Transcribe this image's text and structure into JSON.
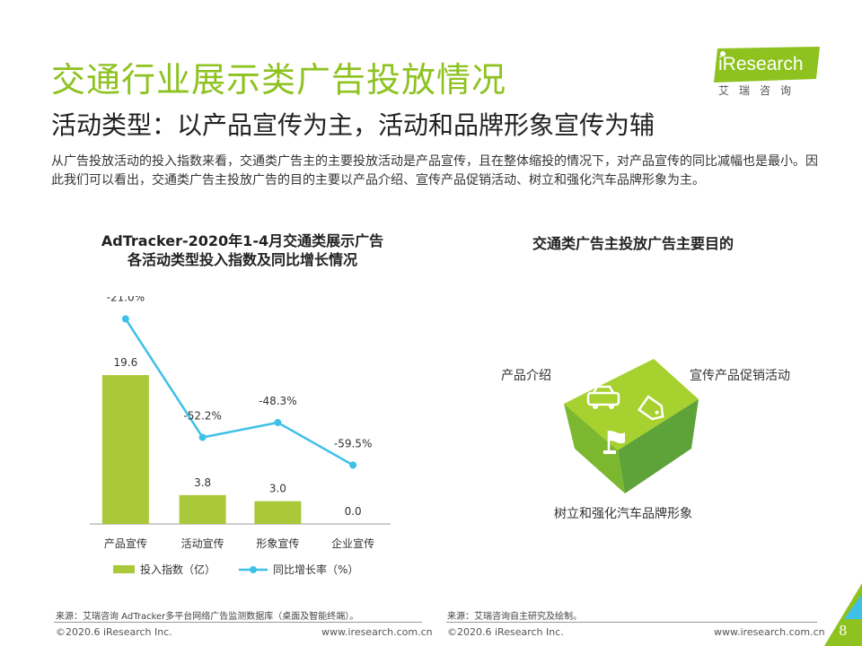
{
  "header": {
    "title": "交通行业展示类广告投放情况",
    "subtitle": "活动类型：以产品宣传为主，活动和品牌形象宣传为辅",
    "body": "从广告投放活动的投入指数来看，交通类广告主的主要投放活动是产品宣传，且在整体缩投的情况下，对产品宣传的同比减幅也是最小。因此我们可以看出，交通类广告主投放广告的目的主要以产品介绍、宣传产品促销活动、树立和强化汽车品牌形象为主。"
  },
  "logo": {
    "name": "iResearch",
    "sub": "艾瑞咨询"
  },
  "chart_data": {
    "type": "bar",
    "title": "AdTracker-2020年1-4月交通类展示广告各活动类型投入指数及同比增长情况",
    "title_line1": "AdTracker-2020年1-4月交通类展示广告",
    "title_line2": "各活动类型投入指数及同比增长情况",
    "categories": [
      "产品宣传",
      "活动宣传",
      "形象宣传",
      "企业宣传"
    ],
    "series": [
      {
        "name": "投入指数（亿）",
        "kind": "bar",
        "values": [
          19.6,
          3.8,
          3.0,
          0.0
        ],
        "labels": [
          "19.6",
          "3.8",
          "3.0",
          "0.0"
        ],
        "color": "#a9c93a"
      },
      {
        "name": "同比增长率（%）",
        "kind": "line",
        "values": [
          -21.0,
          -52.2,
          -48.3,
          -59.5
        ],
        "labels": [
          "-21.0%",
          "-52.2%",
          "-48.3%",
          "-59.5%"
        ],
        "color": "#3fc0e8"
      }
    ],
    "bar_ylim": [
      0,
      30
    ],
    "line_ylim": [
      -75,
      -15
    ],
    "legend": [
      "投入指数（亿）",
      "同比增长率（%）"
    ]
  },
  "diagram": {
    "title": "交通类广告主投放广告主要目的",
    "faces": [
      {
        "label": "产品介绍",
        "icon": "car-icon"
      },
      {
        "label": "宣传产品促销活动",
        "icon": "price-tag-icon"
      },
      {
        "label": "树立和强化汽车品牌形象",
        "icon": "flag-icon"
      }
    ]
  },
  "sources": {
    "left": "来源：艾瑞咨询 AdTracker多平台网络广告监测数据库（桌面及智能终端）。",
    "right": "来源：艾瑞咨询自主研究及绘制。"
  },
  "footer": {
    "copyright": "©2020.6 iResearch Inc.",
    "url": "www.iresearch.com.cn",
    "page": "8"
  }
}
